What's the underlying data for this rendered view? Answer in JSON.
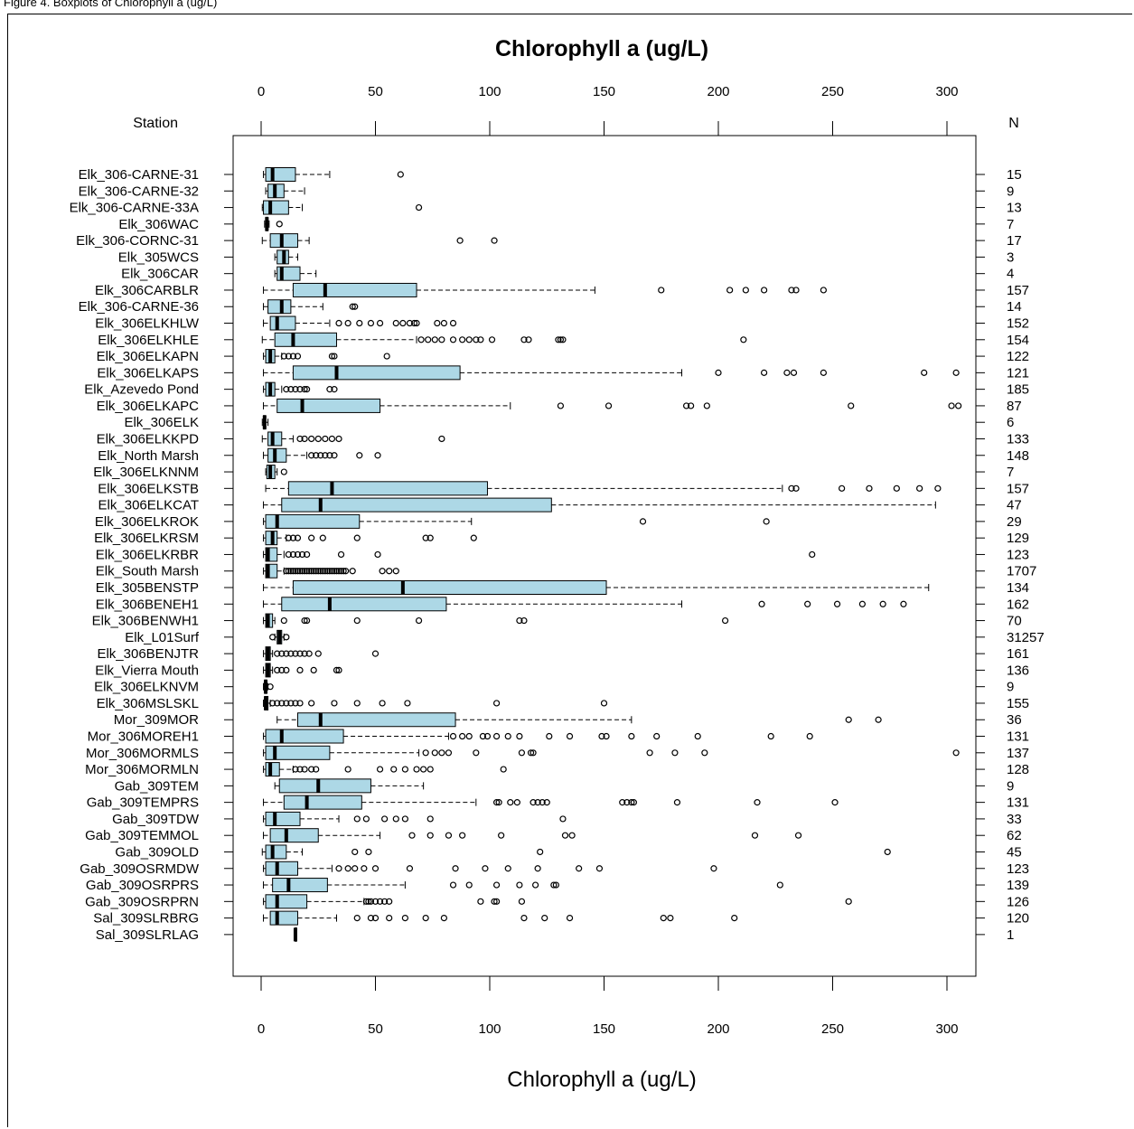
{
  "caption": {
    "prefix": "Figure 4. Boxplots of Chlorophyll a",
    "suffix": "(ug/L)"
  },
  "chart_data": {
    "type": "boxplot",
    "title": "Chlorophyll a (ug/L)",
    "xlabel": "Chlorophyll a (ug/L)",
    "left_header": "Station",
    "right_header": "N",
    "xlim": [
      -12,
      312
    ],
    "xticks": [
      0,
      50,
      100,
      150,
      200,
      250,
      300
    ],
    "grid": false,
    "box_color": "#add8e6",
    "stations": [
      {
        "name": "Elk_306-CARNE-31",
        "n": "15",
        "stats": [
          1,
          2,
          5,
          15,
          30
        ],
        "outliers": [
          61
        ]
      },
      {
        "name": "Elk_306-CARNE-32",
        "n": "9",
        "stats": [
          2,
          3,
          6,
          10,
          19
        ],
        "outliers": []
      },
      {
        "name": "Elk_306-CARNE-33A",
        "n": "13",
        "stats": [
          0.5,
          1,
          4,
          12,
          18
        ],
        "outliers": [
          69
        ]
      },
      {
        "name": "Elk_306WAC",
        "n": "7",
        "stats": [
          1.5,
          2,
          2.5,
          3,
          3.5
        ],
        "outliers": [
          8
        ]
      },
      {
        "name": "Elk_306-CORNC-31",
        "n": "17",
        "stats": [
          0.5,
          4,
          9,
          16,
          21
        ],
        "outliers": [
          87,
          102
        ]
      },
      {
        "name": "Elk_305WCS",
        "n": "3",
        "stats": [
          6,
          7,
          10,
          12,
          16
        ],
        "outliers": []
      },
      {
        "name": "Elk_306CAR",
        "n": "4",
        "stats": [
          6,
          7,
          9,
          17,
          24
        ],
        "outliers": []
      },
      {
        "name": "Elk_306CARBLR",
        "n": "157",
        "stats": [
          1,
          14,
          28,
          68,
          146
        ],
        "outliers": [
          175,
          205,
          212,
          220,
          232,
          234,
          246
        ]
      },
      {
        "name": "Elk_306-CARNE-36",
        "n": "14",
        "stats": [
          1,
          3,
          9,
          13,
          27
        ],
        "outliers": [
          40,
          41
        ]
      },
      {
        "name": "Elk_306ELKHLW",
        "n": "152",
        "stats": [
          1,
          4,
          7,
          15,
          30
        ],
        "outliers": [
          34,
          38,
          43,
          48,
          52,
          59,
          62,
          65,
          67,
          68,
          77,
          80,
          84
        ]
      },
      {
        "name": "Elk_306ELKHLE",
        "n": "154",
        "stats": [
          0.5,
          6,
          14,
          33,
          68
        ],
        "outliers": [
          70,
          73,
          76,
          79,
          84,
          88,
          91,
          94,
          96,
          101,
          115,
          117,
          130,
          131,
          132,
          211
        ]
      },
      {
        "name": "Elk_306ELKAPN",
        "n": "122",
        "stats": [
          1,
          2,
          4,
          6,
          9
        ],
        "outliers": [
          10,
          12,
          14,
          16,
          31,
          32,
          55
        ]
      },
      {
        "name": "Elk_306ELKAPS",
        "n": "121",
        "stats": [
          1,
          14,
          33,
          87,
          184
        ],
        "outliers": [
          200,
          220,
          230,
          233,
          246,
          290,
          304
        ]
      },
      {
        "name": "Elk_Azevedo Pond",
        "n": "185",
        "stats": [
          1,
          2,
          4,
          6,
          9
        ],
        "outliers": [
          11,
          13,
          15,
          17,
          19,
          20,
          30,
          32
        ]
      },
      {
        "name": "Elk_306ELKAPC",
        "n": "87",
        "stats": [
          1,
          7,
          18,
          52,
          109
        ],
        "outliers": [
          131,
          152,
          186,
          188,
          195,
          258,
          302,
          305
        ]
      },
      {
        "name": "Elk_306ELK",
        "n": "6",
        "stats": [
          0.5,
          1,
          1.5,
          2,
          3
        ],
        "outliers": []
      },
      {
        "name": "Elk_306ELKKPD",
        "n": "133",
        "stats": [
          0.5,
          3,
          5,
          9,
          14
        ],
        "outliers": [
          17,
          19,
          22,
          25,
          28,
          31,
          34,
          79
        ]
      },
      {
        "name": "Elk_North Marsh",
        "n": "148",
        "stats": [
          1,
          3,
          6,
          11,
          20
        ],
        "outliers": [
          22,
          24,
          26,
          28,
          30,
          32,
          43,
          51
        ]
      },
      {
        "name": "Elk_306ELKNNM",
        "n": "7",
        "stats": [
          2,
          2.5,
          4,
          6,
          7
        ],
        "outliers": [
          10
        ]
      },
      {
        "name": "Elk_306ELKSTB",
        "n": "157",
        "stats": [
          2,
          12,
          31,
          99,
          228
        ],
        "outliers": [
          232,
          234,
          254,
          266,
          278,
          288,
          296
        ]
      },
      {
        "name": "Elk_306ELKCAT",
        "n": "47",
        "stats": [
          1,
          9,
          26,
          127,
          295
        ],
        "outliers": []
      },
      {
        "name": "Elk_306ELKROK",
        "n": "29",
        "stats": [
          1,
          2,
          7,
          43,
          92
        ],
        "outliers": [
          167,
          221
        ]
      },
      {
        "name": "Elk_306ELKRSM",
        "n": "129",
        "stats": [
          1,
          2,
          5,
          7,
          11
        ],
        "outliers": [
          12,
          14,
          16,
          22,
          27,
          42,
          72,
          74,
          93
        ]
      },
      {
        "name": "Elk_306ELKRBR",
        "n": "123",
        "stats": [
          1,
          2,
          3,
          7,
          10
        ],
        "outliers": [
          12,
          14,
          16,
          18,
          20,
          35,
          51,
          241
        ]
      },
      {
        "name": "Elk_South Marsh",
        "n": "1707",
        "stats": [
          1,
          2,
          3,
          7,
          10
        ],
        "outliers": [
          11,
          12,
          13,
          14,
          15,
          16,
          17,
          18,
          19,
          20,
          21,
          22,
          23,
          24,
          25,
          26,
          27,
          28,
          29,
          30,
          31,
          32,
          33,
          34,
          35,
          36,
          37,
          40,
          53,
          56,
          59
        ]
      },
      {
        "name": "Elk_305BENSTP",
        "n": "134",
        "stats": [
          1,
          14,
          62,
          151,
          292
        ],
        "outliers": []
      },
      {
        "name": "Elk_306BENEH1",
        "n": "162",
        "stats": [
          1,
          9,
          30,
          81,
          184
        ],
        "outliers": [
          219,
          239,
          252,
          263,
          272,
          281
        ]
      },
      {
        "name": "Elk_306BENWH1",
        "n": "70",
        "stats": [
          1,
          2,
          3,
          5,
          6
        ],
        "outliers": [
          10,
          19,
          20,
          42,
          69,
          113,
          115,
          203
        ]
      },
      {
        "name": "Elk_L01Surf",
        "n": "31257",
        "stats": [
          6,
          7,
          8,
          9,
          10
        ],
        "outliers": [
          5,
          11
        ]
      },
      {
        "name": "Elk_306BENJTR",
        "n": "161",
        "stats": [
          1,
          2,
          3,
          4,
          5
        ],
        "outliers": [
          7,
          9,
          11,
          13,
          15,
          17,
          19,
          21,
          25,
          50
        ]
      },
      {
        "name": "Elk_Vierra Mouth",
        "n": "136",
        "stats": [
          1,
          2,
          3,
          4,
          5
        ],
        "outliers": [
          7,
          9,
          11,
          17,
          23,
          33,
          34
        ]
      },
      {
        "name": "Elk_306ELKNVM",
        "n": "9",
        "stats": [
          1,
          1.5,
          2,
          2.5,
          3
        ],
        "outliers": [
          4
        ]
      },
      {
        "name": "Elk_306MSLSKL",
        "n": "155",
        "stats": [
          1,
          1.5,
          2,
          3,
          4
        ],
        "outliers": [
          5,
          7,
          9,
          11,
          13,
          15,
          17,
          22,
          32,
          42,
          53,
          64,
          103,
          150
        ]
      },
      {
        "name": "Mor_309MOR",
        "n": "36",
        "stats": [
          7,
          16,
          26,
          85,
          162
        ],
        "outliers": [
          257,
          270
        ]
      },
      {
        "name": "Mor_306MOREH1",
        "n": "131",
        "stats": [
          1,
          2,
          9,
          36,
          82
        ],
        "outliers": [
          84,
          88,
          91,
          97,
          99,
          103,
          108,
          113,
          126,
          135,
          149,
          151,
          162,
          173,
          191,
          223,
          240
        ]
      },
      {
        "name": "Mor_306MORMLS",
        "n": "137",
        "stats": [
          1,
          2,
          6,
          30,
          69
        ],
        "outliers": [
          72,
          76,
          79,
          82,
          94,
          114,
          118,
          119,
          170,
          181,
          194,
          304
        ]
      },
      {
        "name": "Mor_306MORMLN",
        "n": "128",
        "stats": [
          1,
          2,
          4,
          8,
          14
        ],
        "outliers": [
          15,
          17,
          19,
          22,
          24,
          38,
          52,
          58,
          63,
          68,
          71,
          74,
          106
        ]
      },
      {
        "name": "Gab_309TEM",
        "n": "9",
        "stats": [
          6,
          8,
          25,
          48,
          71
        ],
        "outliers": []
      },
      {
        "name": "Gab_309TEMPRS",
        "n": "131",
        "stats": [
          1,
          10,
          20,
          44,
          94
        ],
        "outliers": [
          103,
          104,
          109,
          112,
          119,
          121,
          123,
          125,
          158,
          160,
          162,
          163,
          182,
          217,
          251
        ]
      },
      {
        "name": "Gab_309TDW",
        "n": "33",
        "stats": [
          1,
          2,
          6,
          17,
          34
        ],
        "outliers": [
          42,
          46,
          54,
          59,
          63,
          74,
          132
        ]
      },
      {
        "name": "Gab_309TEMMOL",
        "n": "62",
        "stats": [
          1,
          4,
          11,
          25,
          52
        ],
        "outliers": [
          66,
          74,
          82,
          88,
          105,
          133,
          136,
          216,
          235
        ]
      },
      {
        "name": "Gab_309OLD",
        "n": "45",
        "stats": [
          0.5,
          2,
          5,
          11,
          18
        ],
        "outliers": [
          41,
          47,
          122,
          274
        ]
      },
      {
        "name": "Gab_309OSRMDW",
        "n": "123",
        "stats": [
          1,
          2,
          7,
          16,
          31
        ],
        "outliers": [
          34,
          38,
          41,
          45,
          50,
          65,
          85,
          98,
          108,
          121,
          139,
          148,
          198
        ]
      },
      {
        "name": "Gab_309OSRPRS",
        "n": "139",
        "stats": [
          1,
          5,
          12,
          29,
          63
        ],
        "outliers": [
          84,
          91,
          103,
          113,
          120,
          128,
          129,
          227
        ]
      },
      {
        "name": "Gab_309OSRPRN",
        "n": "126",
        "stats": [
          1,
          2,
          7,
          20,
          45
        ],
        "outliers": [
          46,
          47,
          48,
          50,
          52,
          54,
          56,
          96,
          102,
          103,
          114,
          257
        ]
      },
      {
        "name": "Sal_309SLRBRG",
        "n": "120",
        "stats": [
          1,
          4,
          7,
          16,
          33
        ],
        "outliers": [
          42,
          48,
          50,
          56,
          63,
          72,
          80,
          115,
          124,
          135,
          176,
          179,
          207
        ]
      },
      {
        "name": "Sal_309SLRLAG",
        "n": "1",
        "stats": [
          15,
          15,
          15,
          15,
          15
        ],
        "outliers": []
      }
    ]
  }
}
